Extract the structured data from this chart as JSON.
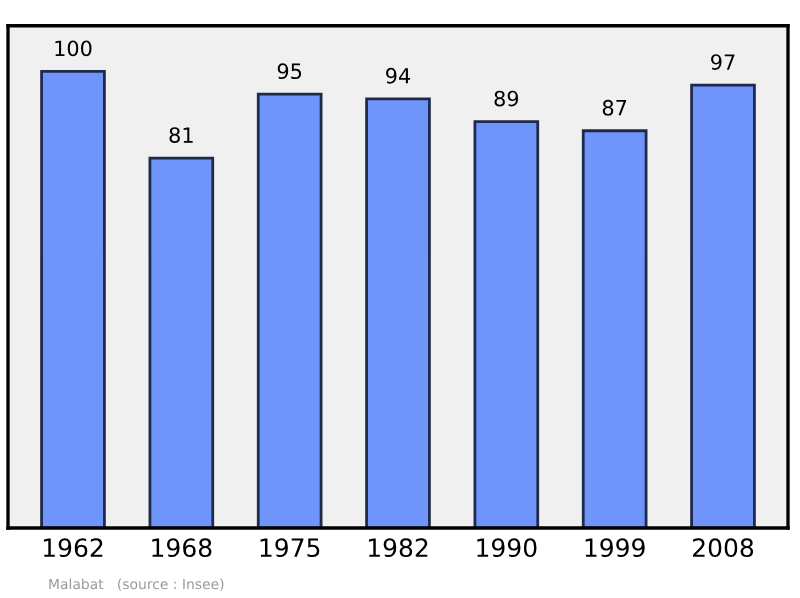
{
  "chart_data": {
    "type": "bar",
    "categories": [
      "1962",
      "1968",
      "1975",
      "1982",
      "1990",
      "1999",
      "2008"
    ],
    "values": [
      100,
      81,
      95,
      94,
      89,
      87,
      97
    ],
    "color": "#6f94fa",
    "data_labels": true,
    "grid": false,
    "tick_labels": "x",
    "annotations": [
      "Malabat   (source : Insee)"
    ]
  }
}
